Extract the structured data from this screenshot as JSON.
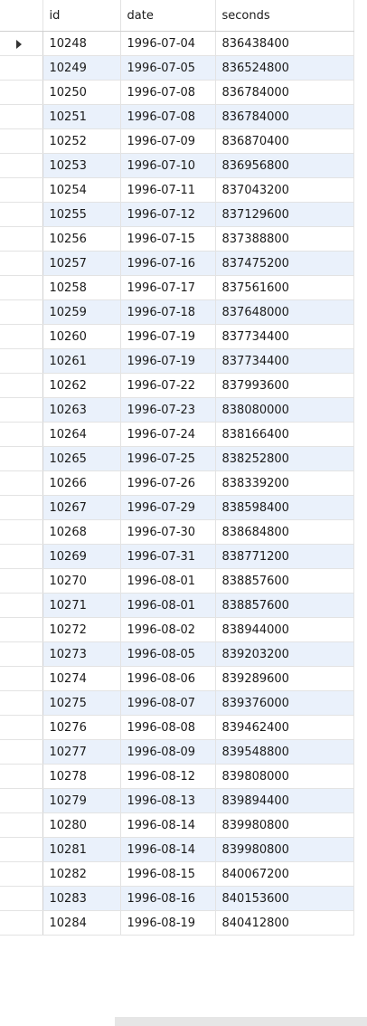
{
  "grid": {
    "columns": [
      "id",
      "date",
      "seconds"
    ],
    "rows": [
      {
        "id": "10248",
        "date": "1996-07-04",
        "seconds": "836438400"
      },
      {
        "id": "10249",
        "date": "1996-07-05",
        "seconds": "836524800"
      },
      {
        "id": "10250",
        "date": "1996-07-08",
        "seconds": "836784000"
      },
      {
        "id": "10251",
        "date": "1996-07-08",
        "seconds": "836784000"
      },
      {
        "id": "10252",
        "date": "1996-07-09",
        "seconds": "836870400"
      },
      {
        "id": "10253",
        "date": "1996-07-10",
        "seconds": "836956800"
      },
      {
        "id": "10254",
        "date": "1996-07-11",
        "seconds": "837043200"
      },
      {
        "id": "10255",
        "date": "1996-07-12",
        "seconds": "837129600"
      },
      {
        "id": "10256",
        "date": "1996-07-15",
        "seconds": "837388800"
      },
      {
        "id": "10257",
        "date": "1996-07-16",
        "seconds": "837475200"
      },
      {
        "id": "10258",
        "date": "1996-07-17",
        "seconds": "837561600"
      },
      {
        "id": "10259",
        "date": "1996-07-18",
        "seconds": "837648000"
      },
      {
        "id": "10260",
        "date": "1996-07-19",
        "seconds": "837734400"
      },
      {
        "id": "10261",
        "date": "1996-07-19",
        "seconds": "837734400"
      },
      {
        "id": "10262",
        "date": "1996-07-22",
        "seconds": "837993600"
      },
      {
        "id": "10263",
        "date": "1996-07-23",
        "seconds": "838080000"
      },
      {
        "id": "10264",
        "date": "1996-07-24",
        "seconds": "838166400"
      },
      {
        "id": "10265",
        "date": "1996-07-25",
        "seconds": "838252800"
      },
      {
        "id": "10266",
        "date": "1996-07-26",
        "seconds": "838339200"
      },
      {
        "id": "10267",
        "date": "1996-07-29",
        "seconds": "838598400"
      },
      {
        "id": "10268",
        "date": "1996-07-30",
        "seconds": "838684800"
      },
      {
        "id": "10269",
        "date": "1996-07-31",
        "seconds": "838771200"
      },
      {
        "id": "10270",
        "date": "1996-08-01",
        "seconds": "838857600"
      },
      {
        "id": "10271",
        "date": "1996-08-01",
        "seconds": "838857600"
      },
      {
        "id": "10272",
        "date": "1996-08-02",
        "seconds": "838944000"
      },
      {
        "id": "10273",
        "date": "1996-08-05",
        "seconds": "839203200"
      },
      {
        "id": "10274",
        "date": "1996-08-06",
        "seconds": "839289600"
      },
      {
        "id": "10275",
        "date": "1996-08-07",
        "seconds": "839376000"
      },
      {
        "id": "10276",
        "date": "1996-08-08",
        "seconds": "839462400"
      },
      {
        "id": "10277",
        "date": "1996-08-09",
        "seconds": "839548800"
      },
      {
        "id": "10278",
        "date": "1996-08-12",
        "seconds": "839808000"
      },
      {
        "id": "10279",
        "date": "1996-08-13",
        "seconds": "839894400"
      },
      {
        "id": "10280",
        "date": "1996-08-14",
        "seconds": "839980800"
      },
      {
        "id": "10281",
        "date": "1996-08-14",
        "seconds": "839980800"
      },
      {
        "id": "10282",
        "date": "1996-08-15",
        "seconds": "840067200"
      },
      {
        "id": "10283",
        "date": "1996-08-16",
        "seconds": "840153600"
      },
      {
        "id": "10284",
        "date": "1996-08-19",
        "seconds": "840412800"
      }
    ],
    "current_row_indicator": "triangle-right-icon",
    "colors": {
      "alt_row": "#eaf1fb",
      "row": "#ffffff",
      "gridline": "#e3e3e3",
      "scrollbar": "#e6e6e6"
    }
  }
}
